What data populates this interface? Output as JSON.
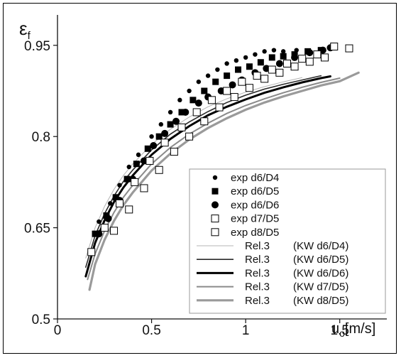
{
  "chart_data": {
    "type": "scatter",
    "title": "",
    "ylabel": "ε",
    "ylabel_sub": "f",
    "xlabel": "u",
    "xlabel_sub": "o",
    "xlabel_unit": "[m/s]",
    "xlim": [
      0,
      1.75
    ],
    "ylim": [
      0.5,
      1.0
    ],
    "xticks": [
      "0",
      "0.5",
      "1",
      "1.5"
    ],
    "xtick_values": [
      0,
      0.5,
      1,
      1.5
    ],
    "yticks": [
      "0.5",
      "0.65",
      "0.8",
      "0.95"
    ],
    "ytick_values": [
      0.5,
      0.65,
      0.8,
      0.95
    ],
    "legend_position": "bottom-right",
    "series": [
      {
        "name": "exp d6/D4",
        "kind": "points",
        "marker": "small-dot",
        "points": [
          [
            0.22,
            0.66
          ],
          [
            0.28,
            0.69
          ],
          [
            0.33,
            0.72
          ],
          [
            0.38,
            0.75
          ],
          [
            0.43,
            0.77
          ],
          [
            0.5,
            0.8
          ],
          [
            0.55,
            0.82
          ],
          [
            0.6,
            0.84
          ],
          [
            0.65,
            0.86
          ],
          [
            0.7,
            0.875
          ],
          [
            0.75,
            0.89
          ],
          [
            0.8,
            0.9
          ],
          [
            0.85,
            0.91
          ],
          [
            0.9,
            0.92
          ],
          [
            0.95,
            0.925
          ],
          [
            1.0,
            0.93
          ],
          [
            1.05,
            0.935
          ],
          [
            1.1,
            0.94
          ],
          [
            1.15,
            0.942
          ],
          [
            1.2,
            0.94
          ],
          [
            1.27,
            0.942
          ]
        ]
      },
      {
        "name": "exp d6/D5",
        "kind": "points",
        "marker": "filled-square",
        "points": [
          [
            0.2,
            0.64
          ],
          [
            0.26,
            0.67
          ],
          [
            0.31,
            0.7
          ],
          [
            0.37,
            0.73
          ],
          [
            0.42,
            0.755
          ],
          [
            0.48,
            0.78
          ],
          [
            0.54,
            0.8
          ],
          [
            0.6,
            0.82
          ],
          [
            0.66,
            0.84
          ],
          [
            0.72,
            0.86
          ],
          [
            0.78,
            0.875
          ],
          [
            0.84,
            0.89
          ],
          [
            0.9,
            0.9
          ],
          [
            0.96,
            0.91
          ],
          [
            1.02,
            0.915
          ],
          [
            1.08,
            0.922
          ],
          [
            1.14,
            0.93
          ],
          [
            1.2,
            0.932
          ],
          [
            1.26,
            0.935
          ],
          [
            1.33,
            0.94
          ],
          [
            1.4,
            0.942
          ]
        ]
      },
      {
        "name": "exp d6/D6",
        "kind": "points",
        "marker": "filled-circle",
        "points": [
          [
            0.22,
            0.64
          ],
          [
            0.27,
            0.665
          ],
          [
            0.33,
            0.695
          ],
          [
            0.4,
            0.73
          ],
          [
            0.46,
            0.76
          ],
          [
            0.51,
            0.785
          ],
          [
            0.57,
            0.805
          ],
          [
            0.63,
            0.825
          ],
          [
            0.68,
            0.84
          ],
          [
            0.75,
            0.855
          ],
          [
            0.8,
            0.865
          ],
          [
            0.87,
            0.875
          ],
          [
            0.93,
            0.885
          ],
          [
            0.98,
            0.893
          ],
          [
            1.05,
            0.905
          ],
          [
            1.11,
            0.912
          ],
          [
            1.18,
            0.92
          ],
          [
            1.26,
            0.93
          ],
          [
            1.34,
            0.938
          ],
          [
            1.41,
            0.942
          ],
          [
            1.45,
            0.946
          ]
        ]
      },
      {
        "name": "exp d7/D5",
        "kind": "points",
        "marker": "open-square",
        "points": [
          [
            0.25,
            0.65
          ],
          [
            0.33,
            0.69
          ],
          [
            0.41,
            0.725
          ],
          [
            0.49,
            0.76
          ],
          [
            0.57,
            0.79
          ],
          [
            0.66,
            0.815
          ],
          [
            0.74,
            0.84
          ],
          [
            0.82,
            0.86
          ],
          [
            0.9,
            0.875
          ],
          [
            0.98,
            0.89
          ],
          [
            1.06,
            0.9
          ],
          [
            1.14,
            0.91
          ],
          [
            1.22,
            0.92
          ],
          [
            1.3,
            0.928
          ],
          [
            1.38,
            0.935
          ],
          [
            1.47,
            0.948
          ]
        ]
      },
      {
        "name": "exp d8/D5",
        "kind": "points",
        "marker": "open-square",
        "points": [
          [
            0.18,
            0.61
          ],
          [
            0.3,
            0.645
          ],
          [
            0.38,
            0.68
          ],
          [
            0.46,
            0.715
          ],
          [
            0.54,
            0.745
          ],
          [
            0.62,
            0.775
          ],
          [
            0.7,
            0.8
          ],
          [
            0.78,
            0.825
          ],
          [
            0.86,
            0.848
          ],
          [
            0.94,
            0.865
          ],
          [
            1.02,
            0.88
          ],
          [
            1.1,
            0.895
          ],
          [
            1.18,
            0.905
          ],
          [
            1.26,
            0.915
          ],
          [
            1.34,
            0.923
          ],
          [
            1.42,
            0.93
          ],
          [
            1.55,
            0.945
          ]
        ]
      },
      {
        "name": "Rel.3",
        "model": "(KW d6/D4)",
        "kind": "line",
        "color": "#b4b4b4",
        "width": 1,
        "x": [
          0.15,
          0.2,
          0.25,
          0.3,
          0.35,
          0.4,
          0.5,
          0.6,
          0.7,
          0.8,
          0.9,
          1.0,
          1.1,
          1.2,
          1.3
        ],
        "y": [
          0.6,
          0.65,
          0.685,
          0.713,
          0.736,
          0.755,
          0.787,
          0.812,
          0.832,
          0.849,
          0.862,
          0.873,
          0.882,
          0.89,
          0.897
        ]
      },
      {
        "name": "Rel.3",
        "model": "(KW d6/D5)",
        "kind": "line",
        "color": "#2b2b2b",
        "width": 1.6,
        "x": [
          0.15,
          0.2,
          0.25,
          0.3,
          0.35,
          0.4,
          0.5,
          0.6,
          0.7,
          0.8,
          0.9,
          1.0,
          1.1,
          1.2,
          1.3,
          1.4
        ],
        "y": [
          0.585,
          0.637,
          0.673,
          0.702,
          0.726,
          0.745,
          0.778,
          0.804,
          0.824,
          0.841,
          0.856,
          0.868,
          0.878,
          0.886,
          0.893,
          0.9
        ]
      },
      {
        "name": "Rel.3",
        "model": "(KW d6/D6)",
        "kind": "line",
        "color": "#000000",
        "width": 3,
        "x": [
          0.15,
          0.2,
          0.25,
          0.3,
          0.35,
          0.4,
          0.5,
          0.6,
          0.7,
          0.8,
          0.9,
          1.0,
          1.1,
          1.2,
          1.3,
          1.4,
          1.45
        ],
        "y": [
          0.57,
          0.625,
          0.662,
          0.692,
          0.716,
          0.736,
          0.77,
          0.796,
          0.817,
          0.835,
          0.849,
          0.861,
          0.872,
          0.881,
          0.889,
          0.896,
          0.899
        ]
      },
      {
        "name": "Rel.3",
        "model": "(KW d7/D5)",
        "kind": "line",
        "color": "#8a8a8a",
        "width": 2,
        "x": [
          0.16,
          0.2,
          0.25,
          0.3,
          0.35,
          0.4,
          0.5,
          0.6,
          0.7,
          0.8,
          0.9,
          1.0,
          1.1,
          1.2,
          1.3,
          1.4,
          1.5
        ],
        "y": [
          0.565,
          0.607,
          0.645,
          0.675,
          0.7,
          0.72,
          0.755,
          0.782,
          0.804,
          0.822,
          0.838,
          0.851,
          0.862,
          0.872,
          0.881,
          0.889,
          0.896
        ]
      },
      {
        "name": "Rel.3",
        "model": "(KW d8/D5)",
        "kind": "line",
        "color": "#9a9a9a",
        "width": 3.2,
        "x": [
          0.17,
          0.2,
          0.25,
          0.3,
          0.35,
          0.4,
          0.5,
          0.6,
          0.7,
          0.8,
          0.9,
          1.0,
          1.1,
          1.2,
          1.3,
          1.4,
          1.5,
          1.6
        ],
        "y": [
          0.548,
          0.59,
          0.63,
          0.661,
          0.687,
          0.708,
          0.744,
          0.772,
          0.795,
          0.814,
          0.83,
          0.844,
          0.856,
          0.866,
          0.875,
          0.884,
          0.891,
          0.905
        ]
      }
    ]
  }
}
